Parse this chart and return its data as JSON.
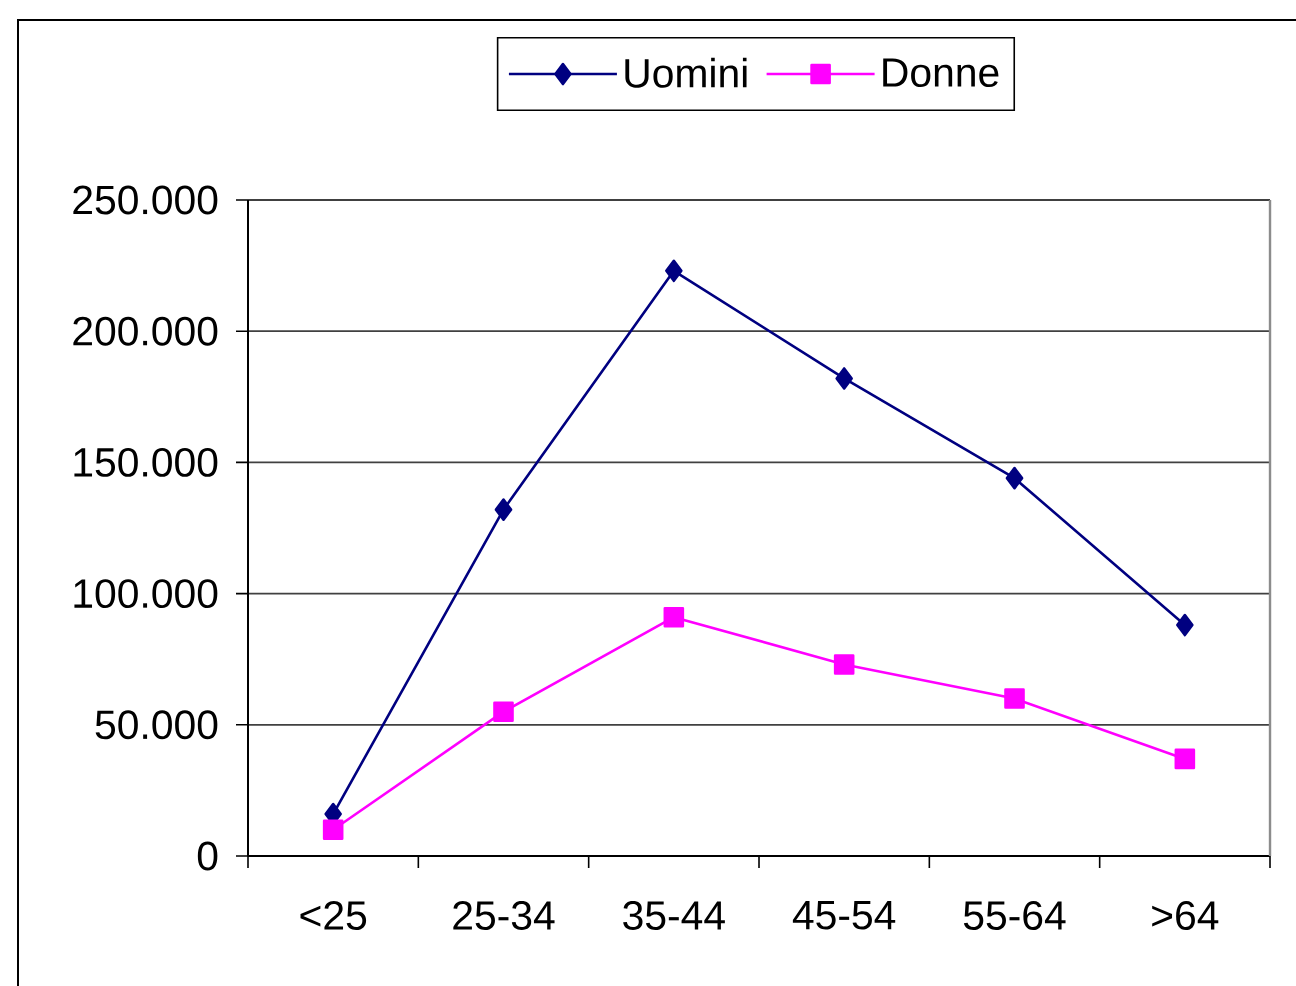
{
  "chart_data": {
    "type": "line",
    "categories": [
      "<25",
      "25-34",
      "35-44",
      "45-54",
      "55-64",
      ">64"
    ],
    "series": [
      {
        "name": "Uomini",
        "color": "#000080",
        "marker": "diamond",
        "values": [
          16000,
          132000,
          223000,
          182000,
          144000,
          88000
        ]
      },
      {
        "name": "Donne",
        "color": "#ff00ff",
        "marker": "square",
        "values": [
          10000,
          55000,
          91000,
          73000,
          60000,
          37000
        ]
      }
    ],
    "ylim": [
      0,
      250000
    ],
    "yticks": [
      0,
      {
        "value": 50000,
        "label": "50.000"
      },
      {
        "value": 100000,
        "label": "100.000"
      },
      {
        "value": 150000,
        "label": "150.000"
      },
      {
        "value": 200000,
        "label": "200.000"
      },
      {
        "value": 250000,
        "label": "250.000"
      }
    ],
    "grid": "y",
    "legend": "top",
    "line_style": "solid"
  }
}
